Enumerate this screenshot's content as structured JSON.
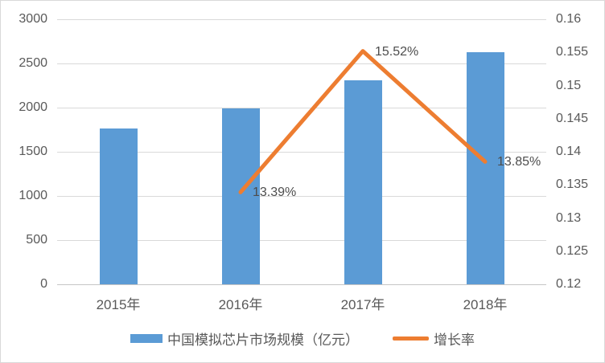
{
  "chart_data": {
    "type": "combo-bar-line",
    "categories": [
      "2015年",
      "2016年",
      "2017年",
      "2018年"
    ],
    "series": [
      {
        "name": "中国模拟芯片市场规模（亿元）",
        "type": "bar",
        "axis": "left",
        "color": "#5B9BD5",
        "values": [
          1760,
          1995,
          2310,
          2625
        ]
      },
      {
        "name": "增长率",
        "type": "line",
        "axis": "right",
        "color": "#ED7D31",
        "values": [
          null,
          0.1339,
          0.1552,
          0.1385
        ],
        "point_labels": [
          null,
          "13.39%",
          "15.52%",
          "13.85%"
        ]
      }
    ],
    "left_axis": {
      "min": 0,
      "max": 3000,
      "step": 500,
      "ticks": [
        0,
        500,
        1000,
        1500,
        2000,
        2500,
        3000
      ],
      "tick_labels": [
        "0",
        "500",
        "1000",
        "1500",
        "2000",
        "2500",
        "3000"
      ]
    },
    "right_axis": {
      "min": 0.12,
      "max": 0.16,
      "step": 0.005,
      "ticks": [
        0.12,
        0.125,
        0.13,
        0.135,
        0.14,
        0.145,
        0.15,
        0.155,
        0.16
      ],
      "tick_labels": [
        "0.12",
        "0.125",
        "0.13",
        "0.135",
        "0.14",
        "0.145",
        "0.15",
        "0.155",
        "0.16"
      ]
    },
    "grid": "horizontal",
    "legend_position": "bottom"
  },
  "style": {
    "bar_color": "#5B9BD5",
    "line_color": "#ED7D31",
    "text_color": "#595959",
    "gridline_color": "#D9D9D9",
    "axis_line_color": "#C6C6C6",
    "background": "#FFFFFF",
    "border_color": "#D9D9D9"
  }
}
